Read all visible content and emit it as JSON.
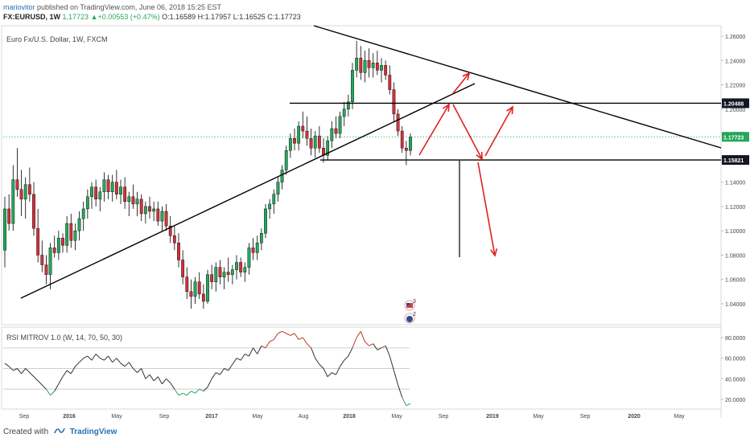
{
  "header": {
    "author": "mariovitor",
    "published_text": " published on TradingView.com, June 06, 2018 15:25 EST",
    "symbol": "FX:EURUSD, 1W",
    "last": "1.17723",
    "change": "+0.00553 (+0.47%)",
    "open": "O:1.16589",
    "high": "H:1.17957",
    "low": "L:1.16525",
    "close": "C:1.17723"
  },
  "chart_title": "Euro Fx/U.S. Dollar, 1W, FXCM",
  "rsi_title": "RSI MITROV 1.0 (W, 14, 70, 50, 30)",
  "footer": {
    "created_with": "Created with",
    "brand": "TradingView"
  },
  "colors": {
    "up": "#26a65b",
    "down": "#d0313b",
    "line": "#000000",
    "arrow": "#e02020",
    "price_tag": "#26a65b"
  },
  "icons": [
    "us-flag-event-icon",
    "eu-flag-event-icon",
    "tradingview-logo-icon"
  ],
  "chart_data": [
    {
      "type": "candlestick",
      "x_axis": {
        "tick_labels": [
          "Sep",
          "2016",
          "May",
          "Sep",
          "2017",
          "May",
          "Aug",
          "2018",
          "May",
          "Sep",
          "2019",
          "May",
          "Sep",
          "2020",
          "May"
        ]
      },
      "y_axis": {
        "tick_labels": [
          "1.26000",
          "1.24000",
          "1.22000",
          "1.20000",
          "1.18000",
          "1.16000",
          "1.14000",
          "1.12000",
          "1.10000",
          "1.08000",
          "1.06000",
          "1.04000"
        ],
        "ylim": [
          1.03,
          1.265
        ]
      },
      "price_tags": [
        {
          "label": "1.20488",
          "value": 1.20488,
          "style": "dark"
        },
        {
          "label": "1.17723",
          "value": 1.17723,
          "style": "green"
        },
        {
          "label": "1.15821",
          "value": 1.15821,
          "style": "dark"
        }
      ],
      "current_price": 1.17723,
      "horizontal_levels": [
        1.20488,
        1.15821
      ],
      "events": [
        {
          "flag": "us",
          "count": "3"
        },
        {
          "flag": "eu",
          "count": "2"
        }
      ],
      "drawings": [
        "ascending trendline from 2015 low through 2018",
        "descending trendline from early 2018 high",
        "scenario arrows up/down from 1.158 support"
      ],
      "candles": [
        [
          1.084,
          1.128,
          1.07,
          1.118
        ],
        [
          1.118,
          1.13,
          1.1,
          1.106
        ],
        [
          1.106,
          1.154,
          1.1,
          1.142
        ],
        [
          1.142,
          1.168,
          1.128,
          1.134
        ],
        [
          1.134,
          1.15,
          1.112,
          1.126
        ],
        [
          1.126,
          1.144,
          1.11,
          1.138
        ],
        [
          1.138,
          1.152,
          1.124,
          1.13
        ],
        [
          1.13,
          1.14,
          1.096,
          1.102
        ],
        [
          1.102,
          1.118,
          1.074,
          1.08
        ],
        [
          1.08,
          1.092,
          1.066,
          1.072
        ],
        [
          1.072,
          1.08,
          1.056,
          1.064
        ],
        [
          1.064,
          1.09,
          1.052,
          1.086
        ],
        [
          1.086,
          1.096,
          1.078,
          1.082
        ],
        [
          1.082,
          1.1,
          1.076,
          1.094
        ],
        [
          1.094,
          1.098,
          1.082,
          1.088
        ],
        [
          1.088,
          1.112,
          1.082,
          1.106
        ],
        [
          1.106,
          1.114,
          1.086,
          1.092
        ],
        [
          1.092,
          1.106,
          1.084,
          1.1
        ],
        [
          1.1,
          1.116,
          1.092,
          1.11
        ],
        [
          1.11,
          1.124,
          1.1,
          1.118
        ],
        [
          1.118,
          1.134,
          1.11,
          1.128
        ],
        [
          1.128,
          1.14,
          1.118,
          1.136
        ],
        [
          1.136,
          1.142,
          1.12,
          1.126
        ],
        [
          1.126,
          1.136,
          1.116,
          1.132
        ],
        [
          1.132,
          1.148,
          1.124,
          1.142
        ],
        [
          1.142,
          1.146,
          1.126,
          1.132
        ],
        [
          1.132,
          1.146,
          1.124,
          1.14
        ],
        [
          1.14,
          1.15,
          1.126,
          1.13
        ],
        [
          1.13,
          1.142,
          1.122,
          1.136
        ],
        [
          1.136,
          1.144,
          1.118,
          1.124
        ],
        [
          1.124,
          1.132,
          1.112,
          1.128
        ],
        [
          1.128,
          1.138,
          1.118,
          1.122
        ],
        [
          1.122,
          1.132,
          1.112,
          1.126
        ],
        [
          1.126,
          1.13,
          1.108,
          1.114
        ],
        [
          1.114,
          1.124,
          1.106,
          1.12
        ],
        [
          1.12,
          1.128,
          1.11,
          1.116
        ],
        [
          1.116,
          1.124,
          1.108,
          1.118
        ],
        [
          1.118,
          1.124,
          1.104,
          1.108
        ],
        [
          1.108,
          1.12,
          1.1,
          1.116
        ],
        [
          1.116,
          1.122,
          1.1,
          1.104
        ],
        [
          1.104,
          1.112,
          1.09,
          1.096
        ],
        [
          1.096,
          1.104,
          1.084,
          1.09
        ],
        [
          1.09,
          1.098,
          1.07,
          1.076
        ],
        [
          1.076,
          1.084,
          1.056,
          1.062
        ],
        [
          1.062,
          1.07,
          1.044,
          1.05
        ],
        [
          1.05,
          1.06,
          1.036,
          1.046
        ],
        [
          1.046,
          1.062,
          1.04,
          1.058
        ],
        [
          1.058,
          1.066,
          1.044,
          1.048
        ],
        [
          1.048,
          1.056,
          1.036,
          1.042
        ],
        [
          1.042,
          1.068,
          1.04,
          1.064
        ],
        [
          1.064,
          1.072,
          1.052,
          1.058
        ],
        [
          1.058,
          1.074,
          1.05,
          1.07
        ],
        [
          1.07,
          1.076,
          1.056,
          1.062
        ],
        [
          1.062,
          1.07,
          1.052,
          1.066
        ],
        [
          1.066,
          1.078,
          1.058,
          1.064
        ],
        [
          1.064,
          1.072,
          1.056,
          1.068
        ],
        [
          1.068,
          1.08,
          1.06,
          1.074
        ],
        [
          1.074,
          1.078,
          1.062,
          1.066
        ],
        [
          1.066,
          1.074,
          1.058,
          1.07
        ],
        [
          1.07,
          1.09,
          1.064,
          1.086
        ],
        [
          1.086,
          1.094,
          1.076,
          1.082
        ],
        [
          1.082,
          1.096,
          1.076,
          1.09
        ],
        [
          1.09,
          1.102,
          1.084,
          1.098
        ],
        [
          1.098,
          1.122,
          1.094,
          1.118
        ],
        [
          1.118,
          1.126,
          1.11,
          1.122
        ],
        [
          1.122,
          1.134,
          1.114,
          1.13
        ],
        [
          1.13,
          1.144,
          1.124,
          1.14
        ],
        [
          1.14,
          1.154,
          1.134,
          1.15
        ],
        [
          1.15,
          1.17,
          1.146,
          1.166
        ],
        [
          1.166,
          1.18,
          1.16,
          1.176
        ],
        [
          1.176,
          1.184,
          1.166,
          1.172
        ],
        [
          1.172,
          1.19,
          1.166,
          1.186
        ],
        [
          1.186,
          1.198,
          1.176,
          1.182
        ],
        [
          1.182,
          1.194,
          1.17,
          1.176
        ],
        [
          1.176,
          1.184,
          1.162,
          1.168
        ],
        [
          1.168,
          1.182,
          1.16,
          1.178
        ],
        [
          1.178,
          1.186,
          1.164,
          1.168
        ],
        [
          1.168,
          1.176,
          1.156,
          1.162
        ],
        [
          1.162,
          1.178,
          1.158,
          1.174
        ],
        [
          1.174,
          1.19,
          1.168,
          1.184
        ],
        [
          1.184,
          1.194,
          1.176,
          1.18
        ],
        [
          1.18,
          1.198,
          1.176,
          1.194
        ],
        [
          1.194,
          1.206,
          1.186,
          1.2
        ],
        [
          1.2,
          1.212,
          1.194,
          1.206
        ],
        [
          1.206,
          1.238,
          1.2,
          1.232
        ],
        [
          1.232,
          1.256,
          1.226,
          1.242
        ],
        [
          1.242,
          1.252,
          1.224,
          1.23
        ],
        [
          1.23,
          1.248,
          1.222,
          1.24
        ],
        [
          1.24,
          1.25,
          1.226,
          1.234
        ],
        [
          1.234,
          1.246,
          1.226,
          1.238
        ],
        [
          1.238,
          1.248,
          1.228,
          1.232
        ],
        [
          1.232,
          1.242,
          1.222,
          1.236
        ],
        [
          1.236,
          1.24,
          1.224,
          1.228
        ],
        [
          1.228,
          1.236,
          1.212,
          1.216
        ],
        [
          1.216,
          1.222,
          1.19,
          1.196
        ],
        [
          1.196,
          1.2,
          1.178,
          1.182
        ],
        [
          1.182,
          1.186,
          1.164,
          1.168
        ],
        [
          1.168,
          1.174,
          1.154,
          1.166
        ],
        [
          1.166,
          1.18,
          1.162,
          1.177
        ]
      ],
      "volume_bars": []
    },
    {
      "type": "line",
      "title": "RSI MITROV 1.0 (W, 14, 70, 50, 30)",
      "y_axis": {
        "tick_labels": [
          "80.0000",
          "60.0000",
          "40.0000",
          "20.0000"
        ],
        "ylim": [
          12,
          88
        ]
      },
      "levels": [
        70,
        50,
        30
      ],
      "series": [
        {
          "values": [
            55,
            52,
            48,
            50,
            45,
            50,
            46,
            42,
            38,
            34,
            30,
            24,
            28,
            35,
            42,
            48,
            45,
            52,
            56,
            60,
            62,
            58,
            64,
            60,
            58,
            62,
            56,
            60,
            55,
            52,
            56,
            50,
            46,
            50,
            40,
            44,
            38,
            42,
            35,
            40,
            36,
            30,
            24,
            26,
            24,
            28,
            26,
            30,
            28,
            32,
            40,
            46,
            44,
            50,
            48,
            54,
            60,
            58,
            64,
            62,
            70,
            64,
            72,
            70,
            76,
            78,
            84,
            86,
            84,
            82,
            84,
            78,
            80,
            74,
            70,
            60,
            54,
            50,
            42,
            46,
            44,
            52,
            58,
            62,
            70,
            80,
            86,
            76,
            72,
            74,
            68,
            70,
            72,
            62,
            48,
            34,
            22,
            14,
            16
          ]
        }
      ]
    }
  ]
}
